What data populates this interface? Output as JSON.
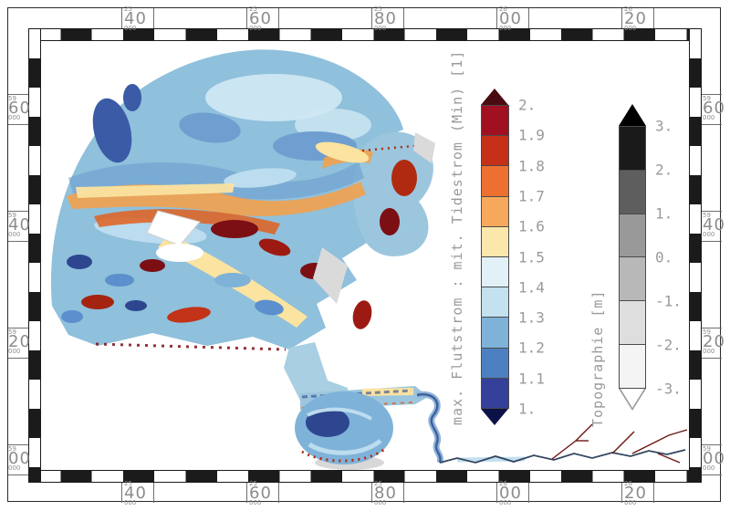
{
  "figure": {
    "kind": "coastal tidal-model result map with checkered map frame",
    "background": "#ffffff"
  },
  "palette": {
    "frame_black": "#1b1b1b",
    "axis_text": "#8d8d8d",
    "legend_text": "#9a9a9a",
    "sea_base": "#8fc0dc",
    "sea_dark": "#3b5ba7",
    "sea_mid": "#6f9fd0",
    "sea_pale": "#cfe7f3",
    "flat_yellow": "#fbe3a0",
    "flat_orange": "#f2a14c",
    "flat_deep_orange": "#e0601f",
    "flat_red": "#c23317",
    "flat_dark_red": "#7c0f14",
    "land_fringe": "#d8d8d8",
    "river_line": "#32455f",
    "tributary_red": "#6b1513"
  },
  "axes": {
    "top": [
      {
        "prefix": "25",
        "value": "40",
        "suffix": "000"
      },
      {
        "prefix": "25",
        "value": "60",
        "suffix": "000"
      },
      {
        "prefix": "25",
        "value": "80",
        "suffix": "000"
      },
      {
        "prefix": "26",
        "value": "00",
        "suffix": "000"
      },
      {
        "prefix": "26",
        "value": "20",
        "suffix": "000"
      }
    ],
    "bottom": [
      {
        "prefix": "25",
        "value": "40",
        "suffix": "000"
      },
      {
        "prefix": "25",
        "value": "60",
        "suffix": "000"
      },
      {
        "prefix": "25",
        "value": "80",
        "suffix": "000"
      },
      {
        "prefix": "26",
        "value": "00",
        "suffix": "000"
      },
      {
        "prefix": "26",
        "value": "20",
        "suffix": "000"
      }
    ],
    "left": [
      {
        "prefix": "59",
        "value": "60",
        "suffix": "000"
      },
      {
        "prefix": "59",
        "value": "40",
        "suffix": "000"
      },
      {
        "prefix": "59",
        "value": "20",
        "suffix": "000"
      },
      {
        "prefix": "59",
        "value": "00",
        "suffix": "000"
      }
    ],
    "right": [
      {
        "prefix": "59",
        "value": "60",
        "suffix": "000"
      },
      {
        "prefix": "59",
        "value": "40",
        "suffix": "000"
      },
      {
        "prefix": "59",
        "value": "20",
        "suffix": "000"
      },
      {
        "prefix": "59",
        "value": "00",
        "suffix": "000"
      }
    ]
  },
  "legend_flow": {
    "title": "max. Flutstrom : mit. Tidestrom (Min) [1]",
    "ticks": [
      "2.",
      "1.9",
      "1.8",
      "1.7",
      "1.6",
      "1.5",
      "1.4",
      "1.3",
      "1.2",
      "1.1",
      "1."
    ],
    "colors": [
      "#a01020",
      "#c63019",
      "#ee7030",
      "#f6a85c",
      "#fbe7ab",
      "#e2f1f7",
      "#c3e1ef",
      "#7fb2d8",
      "#4d80c0",
      "#35409a"
    ],
    "above_color": "#4a0a12",
    "below_color": "#0c1148"
  },
  "legend_topo": {
    "title": "Topographie [m]",
    "ticks": [
      "3.",
      "2.",
      "1.",
      "0.",
      "-1.",
      "-2.",
      "-3."
    ],
    "colors": [
      "#1a1a1a",
      "#5e5e5e",
      "#999999",
      "#b8b8b8",
      "#dedede",
      "#f4f4f4"
    ],
    "above_color": "#000000",
    "below_color": "#ffffff"
  },
  "chart_data": {
    "type": "heatmap",
    "title": "",
    "x_tick_labels": [
      "2540000",
      "2560000",
      "2580000",
      "2600000",
      "2620000"
    ],
    "y_tick_labels": [
      "5960000",
      "5940000",
      "5920000",
      "5900000"
    ],
    "color_scales": [
      {
        "name": "max. Flutstrom : mit. Tidestrom (Min) [1]",
        "range": [
          1.0,
          2.0
        ],
        "step": 0.1
      },
      {
        "name": "Topographie [m]",
        "range": [
          -3,
          3
        ],
        "step": 1
      }
    ]
  }
}
